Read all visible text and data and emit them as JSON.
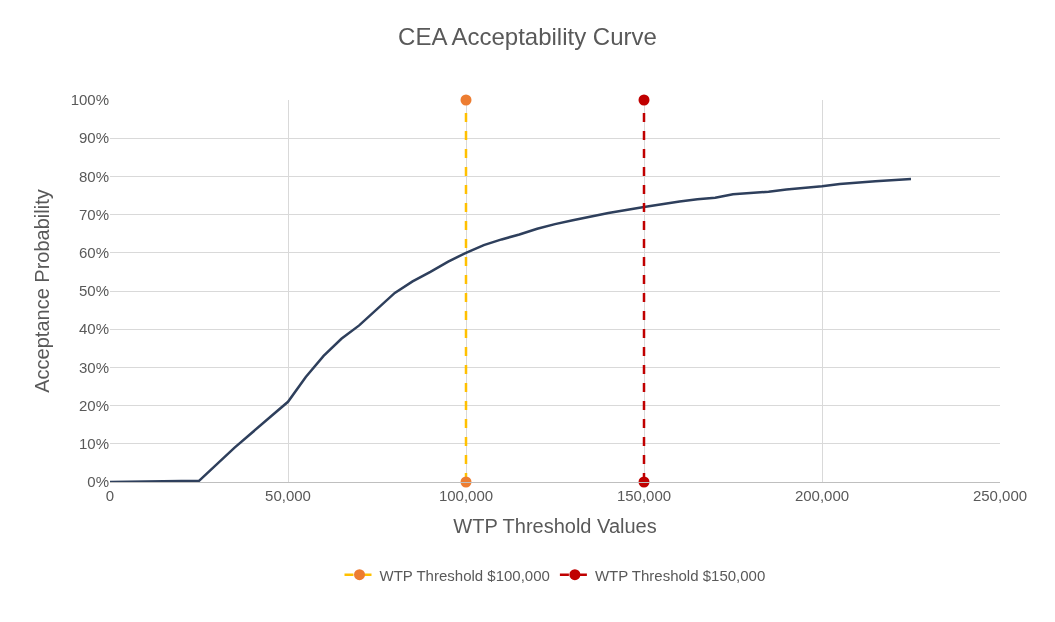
{
  "chart_data": {
    "type": "line",
    "title": "CEA Acceptability Curve",
    "xlabel": "WTP Threshold Values",
    "ylabel": "Acceptance Probability",
    "xlim": [
      0,
      250000
    ],
    "xticks": [
      0,
      {
        "value": 50000,
        "label": "50,000"
      },
      {
        "value": 100000,
        "label": "100,000"
      },
      {
        "value": 150000,
        "label": "150,000"
      },
      {
        "value": 200000,
        "label": "200,000"
      },
      {
        "value": 250000,
        "label": "250,000"
      }
    ],
    "ylim": [
      0,
      100
    ],
    "yticks": [
      {
        "value": 0,
        "label": "0%"
      },
      {
        "value": 10,
        "label": "10%"
      },
      {
        "value": 20,
        "label": "20%"
      },
      {
        "value": 30,
        "label": "30%"
      },
      {
        "value": 40,
        "label": "40%"
      },
      {
        "value": 50,
        "label": "50%"
      },
      {
        "value": 60,
        "label": "60%"
      },
      {
        "value": 70,
        "label": "70%"
      },
      {
        "value": 80,
        "label": "80%"
      },
      {
        "value": 90,
        "label": "90%"
      },
      {
        "value": 100,
        "label": "100%"
      }
    ],
    "grid": true,
    "legend": "bottom",
    "series": [
      {
        "color": "#2e3f5c",
        "marker": "none",
        "line_style": "solid",
        "x": [
          0,
          10000,
          25000,
          35000,
          45000,
          50000,
          55000,
          60000,
          65000,
          70000,
          80000,
          85000,
          90000,
          95000,
          100000,
          105000,
          110000,
          115000,
          120000,
          125000,
          130000,
          140000,
          150000,
          160000,
          165000,
          170000,
          175000,
          185000,
          190000,
          200000,
          205000,
          215000,
          225000
        ],
        "values": [
          0,
          0.1,
          0.3,
          9,
          17,
          21,
          27.5,
          33,
          37.5,
          41,
          49.5,
          52.5,
          55,
          57.7,
          60,
          62,
          63.5,
          64.8,
          66.3,
          67.5,
          68.5,
          70.4,
          72,
          73.4,
          74,
          74.4,
          75.3,
          76,
          76.6,
          77.4,
          78,
          78.7,
          79.3
        ]
      },
      {
        "name": "WTP Threshold $100,000",
        "color": "#ffc000",
        "colors": [
          "#ed7d31",
          "#ed7d31"
        ],
        "marker": "circle",
        "line_style": "dashed",
        "x": [
          100000,
          100000
        ],
        "values": [
          0,
          100
        ]
      },
      {
        "name": "WTP Threshold $150,000",
        "color": "#c00000",
        "colors": [
          "#c00000",
          "#c00000"
        ],
        "marker": "circle",
        "line_style": "dashed",
        "x": [
          150000,
          150000
        ],
        "values": [
          0,
          100
        ]
      }
    ]
  }
}
